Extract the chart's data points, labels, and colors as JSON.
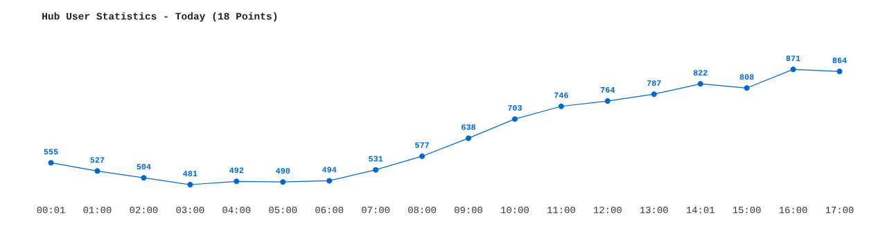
{
  "chart_data": {
    "type": "line",
    "title": "Hub User Statistics - Today (18 Points)",
    "categories": [
      "00:01",
      "01:00",
      "02:00",
      "03:00",
      "04:00",
      "05:00",
      "06:00",
      "07:00",
      "08:00",
      "09:00",
      "10:00",
      "11:00",
      "12:00",
      "13:00",
      "14:01",
      "15:00",
      "16:00",
      "17:00"
    ],
    "series": [
      {
        "color": "#0066cc",
        "values": [
          555,
          527,
          504,
          481,
          492,
          490,
          494,
          531,
          577,
          638,
          703,
          746,
          764,
          787,
          822,
          808,
          871,
          864
        ]
      }
    ],
    "data_labels": true,
    "marker": "circle",
    "line_style": "solid",
    "grid": false,
    "legend": false
  }
}
